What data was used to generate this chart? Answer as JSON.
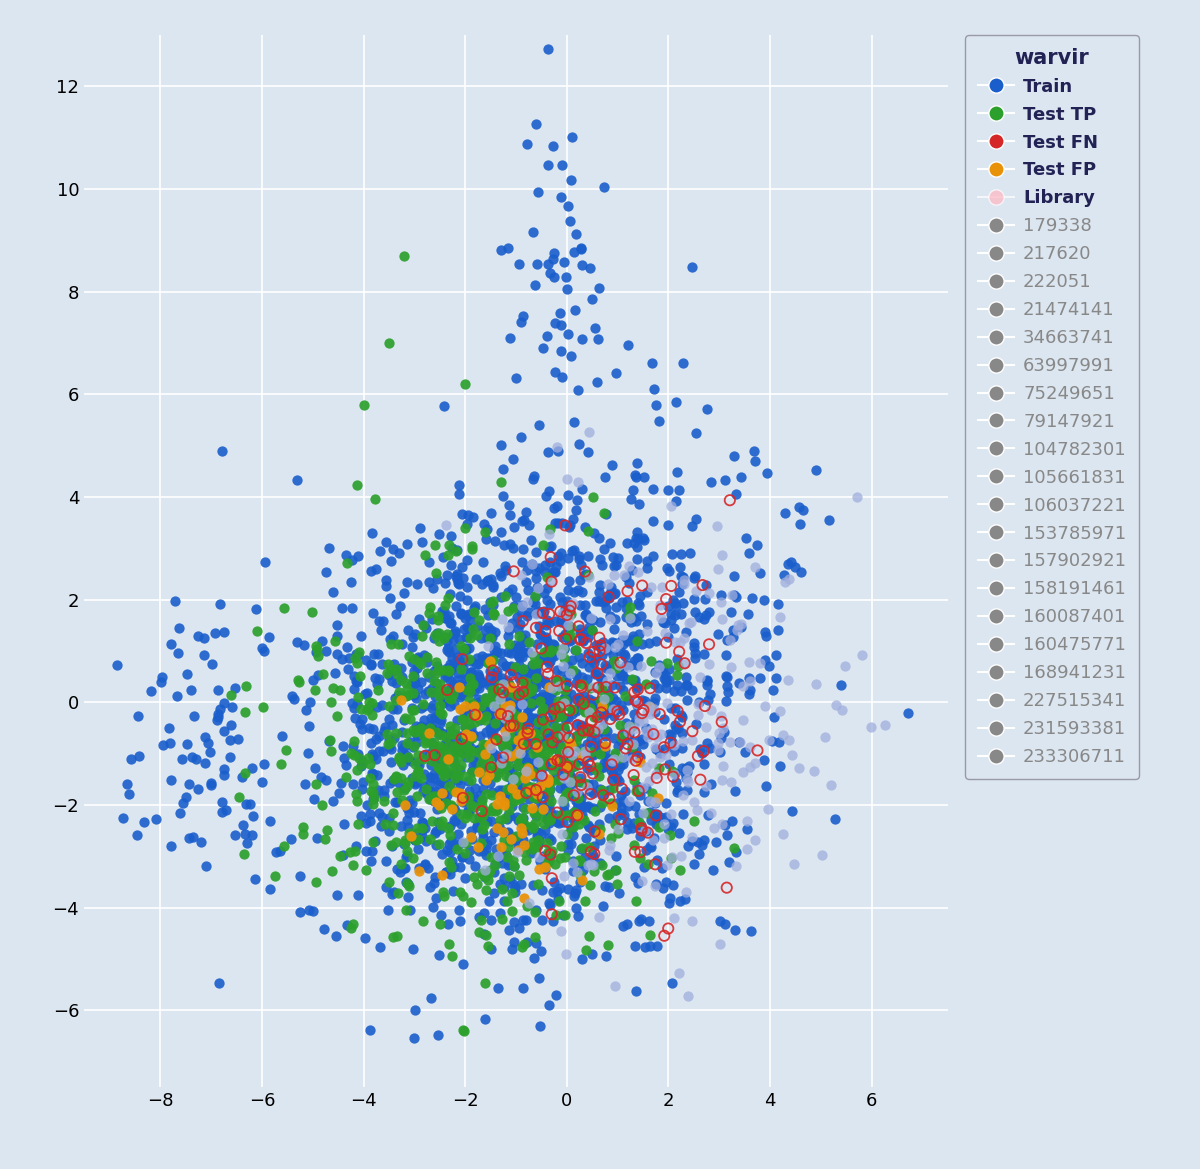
{
  "background_color": "#dce6f0",
  "xlim": [
    -9.5,
    7.5
  ],
  "ylim": [
    -7.5,
    13
  ],
  "xticks": [
    -8,
    -6,
    -4,
    -2,
    0,
    2,
    4,
    6
  ],
  "yticks": [
    -6,
    -4,
    -2,
    0,
    2,
    4,
    6,
    8,
    10,
    12
  ],
  "grid_color": "white",
  "legend_title": "warvir",
  "train_color": "#1a5ecc",
  "test_tp_color": "#2ca02c",
  "test_fn_color": "#d62728",
  "test_fp_color": "#e8920a",
  "library_color": "#a0aedd",
  "gray_color": "#888888",
  "marker_size_pts": 55,
  "seed": 42,
  "n_train": 2000,
  "n_test_tp": 700,
  "n_test_fn": 180,
  "n_test_fp": 90,
  "n_library": 250,
  "numeric_legend_entries": [
    "179338",
    "217620",
    "222051",
    "21474141",
    "34663741",
    "63997991",
    "75249651",
    "79147921",
    "104782301",
    "105661831",
    "106037221",
    "153785971",
    "157902921",
    "158191461",
    "160087401",
    "160475771",
    "168941231",
    "227515341",
    "231593381",
    "233306711"
  ]
}
